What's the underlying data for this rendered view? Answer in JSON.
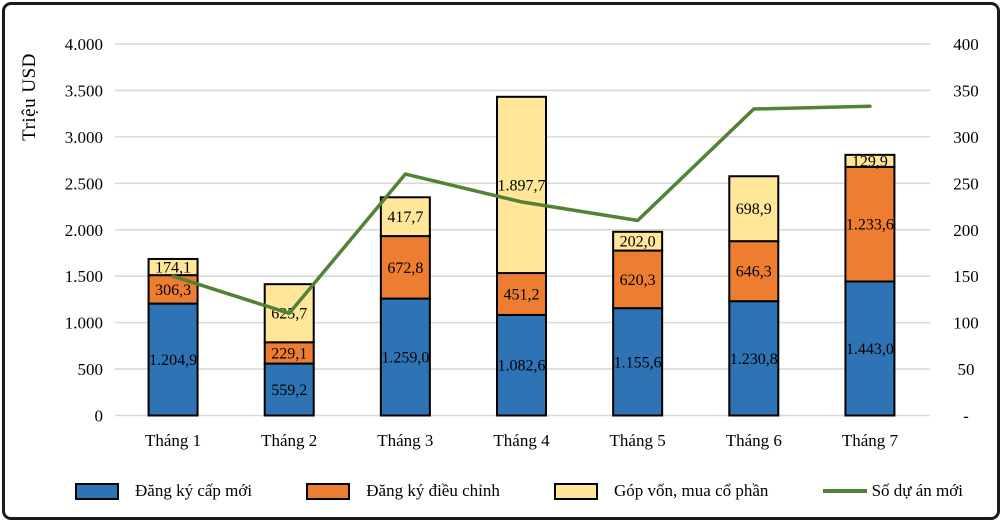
{
  "chart_data": {
    "type": "bar",
    "subtype": "stacked-bars-with-line-overlay",
    "categories": [
      "Tháng 1",
      "Tháng 2",
      "Tháng 3",
      "Tháng 4",
      "Tháng 5",
      "Tháng 6",
      "Tháng 7"
    ],
    "bar_series": [
      {
        "name": "Đăng ký cấp mới",
        "color": "#2E74B5",
        "values": [
          1204.9,
          559.2,
          1259.0,
          1082.6,
          1155.6,
          1230.8,
          1443.0
        ],
        "labels": [
          "1.204,9",
          "559,2",
          "1.259,0",
          "1.082,6",
          "1.155,6",
          "1.230,8",
          "1.443,0"
        ]
      },
      {
        "name": "Đăng ký điều chỉnh",
        "color": "#ED7D31",
        "values": [
          306.3,
          229.1,
          672.8,
          451.2,
          620.3,
          646.3,
          1233.6
        ],
        "labels": [
          "306,3",
          "229,1",
          "672,8",
          "451,2",
          "620,3",
          "646,3",
          "1.233,6"
        ]
      },
      {
        "name": "Góp vốn, mua cổ phần",
        "color": "#FFE699",
        "values": [
          174.1,
          625.7,
          417.7,
          1897.7,
          202.0,
          698.9,
          129.9
        ],
        "labels": [
          "174,1",
          "625,7",
          "417,7",
          "1.897,7",
          "202,0",
          "698,9",
          "129,9"
        ]
      }
    ],
    "line_series": {
      "name": "Số dự án mới",
      "color": "#548235",
      "axis": "right",
      "values": [
        150,
        110,
        260,
        230,
        210,
        330,
        333
      ],
      "note": "values estimated from right axis, no data labels shown"
    },
    "left_axis": {
      "title": "Triệu USD",
      "min": 0,
      "max": 4000,
      "step": 500,
      "tick_labels": [
        "0",
        "500",
        "1.000",
        "1.500",
        "2.000",
        "2.500",
        "3.000",
        "3.500",
        "4.000"
      ]
    },
    "right_axis": {
      "min": 0,
      "max": 400,
      "step": 50,
      "tick_labels": [
        "-",
        "50",
        "100",
        "150",
        "200",
        "250",
        "300",
        "350",
        "400"
      ]
    },
    "grid": true,
    "legend_position": "bottom"
  },
  "legend": {
    "items": [
      {
        "label": "Đăng ký cấp mới",
        "swatch": "#2E74B5",
        "type": "box"
      },
      {
        "label": "Đăng ký điều chỉnh",
        "swatch": "#ED7D31",
        "type": "box"
      },
      {
        "label": "Góp vốn, mua cổ phần",
        "swatch": "#FFE699",
        "type": "box"
      },
      {
        "label": "Số dự án mới",
        "swatch": "#548235",
        "type": "line"
      }
    ]
  },
  "colors": {
    "grid": "#D9D9D9",
    "bar_border": "#000000",
    "frame": "#1B1B1B",
    "background": "#FFFFFF"
  }
}
